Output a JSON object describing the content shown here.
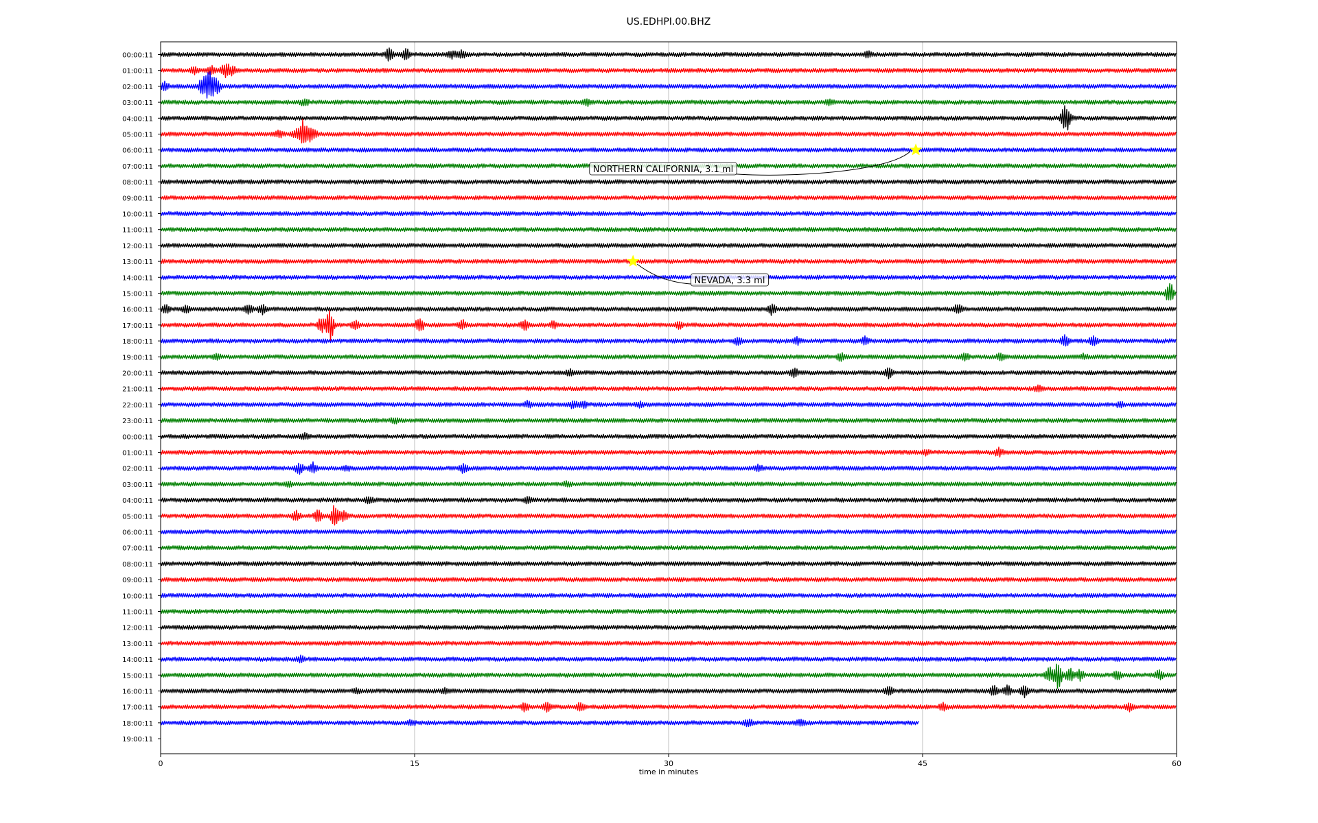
{
  "chart_data": {
    "type": "line",
    "title": "US.EDHPI.00.BHZ",
    "xlabel": "time in minutes",
    "ylabel": "",
    "xlim": [
      0,
      60
    ],
    "x_ticks": [
      "0",
      "15",
      "30",
      "45",
      "60"
    ],
    "x_tick_values": [
      0,
      15,
      30,
      45,
      60
    ],
    "grid": "vertical lines at 15, 30, 45",
    "trace_colors": [
      "#000000",
      "#ff0000",
      "#0000ff",
      "#008000"
    ],
    "rows": [
      {
        "label": "00:00:11",
        "bursts": [
          [
            13.5,
            0.8
          ],
          [
            14.5,
            0.7
          ],
          [
            17.2,
            0.5
          ],
          [
            17.8,
            0.5
          ],
          [
            41.8,
            0.4
          ]
        ]
      },
      {
        "label": "01:00:11",
        "bursts": [
          [
            2.0,
            0.4
          ],
          [
            3.0,
            0.5
          ],
          [
            3.8,
            0.9
          ],
          [
            4.2,
            0.6
          ]
        ]
      },
      {
        "label": "02:00:11",
        "bursts": [
          [
            0.2,
            0.6
          ],
          [
            2.5,
            1.3
          ],
          [
            2.9,
            2.2
          ],
          [
            3.3,
            1.0
          ]
        ]
      },
      {
        "label": "03:00:11",
        "bursts": [
          [
            8.5,
            0.4
          ],
          [
            25.2,
            0.4
          ],
          [
            39.5,
            0.3
          ]
        ]
      },
      {
        "label": "04:00:11",
        "bursts": [
          [
            53.4,
            1.5
          ],
          [
            53.6,
            0.7
          ]
        ]
      },
      {
        "label": "05:00:11",
        "bursts": [
          [
            7.0,
            0.4
          ],
          [
            8.0,
            0.6
          ],
          [
            8.4,
            1.8
          ],
          [
            8.8,
            0.8
          ],
          [
            9.0,
            0.5
          ]
        ]
      },
      {
        "label": "06:00:11",
        "bursts": []
      },
      {
        "label": "07:00:11",
        "bursts": []
      },
      {
        "label": "08:00:11",
        "bursts": []
      },
      {
        "label": "09:00:11",
        "bursts": []
      },
      {
        "label": "10:00:11",
        "bursts": []
      },
      {
        "label": "11:00:11",
        "bursts": []
      },
      {
        "label": "12:00:11",
        "bursts": []
      },
      {
        "label": "13:00:11",
        "bursts": []
      },
      {
        "label": "14:00:11",
        "bursts": []
      },
      {
        "label": "15:00:11",
        "bursts": [
          [
            59.6,
            1.5
          ]
        ]
      },
      {
        "label": "16:00:11",
        "bursts": [
          [
            0.3,
            0.6
          ],
          [
            1.5,
            0.5
          ],
          [
            5.2,
            0.6
          ],
          [
            6.0,
            0.6
          ],
          [
            36.1,
            0.7
          ],
          [
            47.1,
            0.6
          ]
        ]
      },
      {
        "label": "17:00:11",
        "bursts": [
          [
            9.5,
            1.0
          ],
          [
            10.0,
            2.2
          ],
          [
            11.5,
            0.6
          ],
          [
            15.3,
            0.9
          ],
          [
            17.8,
            0.6
          ],
          [
            21.5,
            0.6
          ],
          [
            23.2,
            0.4
          ],
          [
            30.6,
            0.4
          ]
        ]
      },
      {
        "label": "18:00:11",
        "bursts": [
          [
            34.1,
            0.5
          ],
          [
            37.6,
            0.4
          ],
          [
            41.6,
            0.5
          ],
          [
            53.4,
            0.7
          ],
          [
            55.1,
            0.7
          ]
        ]
      },
      {
        "label": "19:00:11",
        "bursts": [
          [
            3.3,
            0.3
          ],
          [
            40.2,
            0.5
          ],
          [
            47.5,
            0.5
          ],
          [
            49.6,
            0.5
          ],
          [
            54.5,
            0.3
          ]
        ]
      },
      {
        "label": "20:00:11",
        "bursts": [
          [
            24.2,
            0.4
          ],
          [
            37.4,
            0.6
          ],
          [
            43.0,
            0.6
          ]
        ]
      },
      {
        "label": "21:00:11",
        "bursts": [
          [
            51.8,
            0.4
          ]
        ]
      },
      {
        "label": "22:00:11",
        "bursts": [
          [
            21.7,
            0.4
          ],
          [
            24.4,
            0.5
          ],
          [
            25.0,
            0.4
          ],
          [
            28.3,
            0.3
          ],
          [
            56.7,
            0.3
          ]
        ]
      },
      {
        "label": "23:00:11",
        "bursts": [
          [
            13.8,
            0.3
          ]
        ]
      },
      {
        "label": "00:00:11",
        "bursts": [
          [
            8.5,
            0.3
          ]
        ]
      },
      {
        "label": "01:00:11",
        "bursts": [
          [
            45.2,
            0.3
          ],
          [
            49.5,
            0.5
          ]
        ]
      },
      {
        "label": "02:00:11",
        "bursts": [
          [
            8.2,
            0.7
          ],
          [
            9.0,
            0.7
          ],
          [
            11.0,
            0.3
          ],
          [
            17.9,
            0.6
          ],
          [
            35.3,
            0.4
          ]
        ]
      },
      {
        "label": "03:00:11",
        "bursts": [
          [
            7.5,
            0.3
          ],
          [
            24.0,
            0.3
          ]
        ]
      },
      {
        "label": "04:00:11",
        "bursts": [
          [
            12.3,
            0.4
          ],
          [
            21.7,
            0.4
          ]
        ]
      },
      {
        "label": "05:00:11",
        "bursts": [
          [
            8.0,
            0.6
          ],
          [
            9.3,
            0.8
          ],
          [
            10.3,
            1.6
          ],
          [
            10.8,
            0.7
          ]
        ]
      },
      {
        "label": "06:00:11",
        "bursts": []
      },
      {
        "label": "07:00:11",
        "bursts": []
      },
      {
        "label": "08:00:11",
        "bursts": []
      },
      {
        "label": "09:00:11",
        "bursts": []
      },
      {
        "label": "10:00:11",
        "bursts": []
      },
      {
        "label": "11:00:11",
        "bursts": []
      },
      {
        "label": "12:00:11",
        "bursts": []
      },
      {
        "label": "13:00:11",
        "bursts": []
      },
      {
        "label": "14:00:11",
        "bursts": [
          [
            8.3,
            0.4
          ]
        ]
      },
      {
        "label": "15:00:11",
        "bursts": [
          [
            52.5,
            1.0
          ],
          [
            53.0,
            1.8
          ],
          [
            53.7,
            1.0
          ],
          [
            54.3,
            0.6
          ],
          [
            56.5,
            0.5
          ],
          [
            59.0,
            0.6
          ]
        ]
      },
      {
        "label": "16:00:11",
        "bursts": [
          [
            11.6,
            0.3
          ],
          [
            16.8,
            0.3
          ],
          [
            43.0,
            0.5
          ],
          [
            49.2,
            0.6
          ],
          [
            50.0,
            0.7
          ],
          [
            51.0,
            0.8
          ]
        ]
      },
      {
        "label": "17:00:11",
        "bursts": [
          [
            21.5,
            0.5
          ],
          [
            22.8,
            0.6
          ],
          [
            24.8,
            0.5
          ],
          [
            46.2,
            0.5
          ],
          [
            57.2,
            0.5
          ]
        ]
      },
      {
        "label": "18:00:11",
        "bursts": [
          [
            14.8,
            0.3
          ],
          [
            34.7,
            0.5
          ],
          [
            37.8,
            0.4
          ]
        ],
        "end_minute": 44.8
      },
      {
        "label": "19:00:11",
        "bursts": [],
        "end_minute": 0
      }
    ],
    "annotations": [
      {
        "text": "NORTHERN CALIFORNIA, 3.1 ml",
        "row": 6,
        "minute": 44.6
      },
      {
        "text": "NEVADA, 3.3 ml",
        "row": 13,
        "minute": 27.9
      }
    ],
    "marker_color": "#ffff00"
  }
}
